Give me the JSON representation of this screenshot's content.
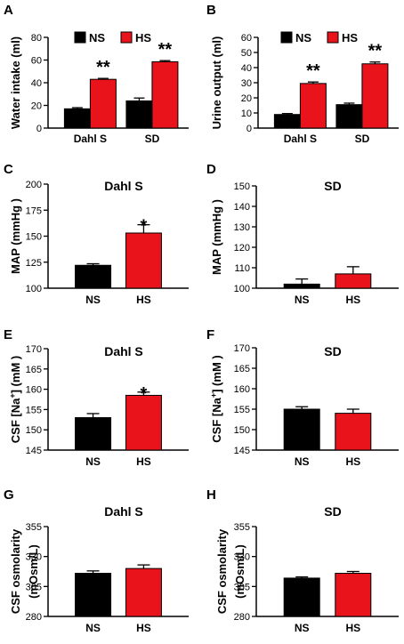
{
  "colors": {
    "NS": "#000000",
    "HS": "#e8131b"
  },
  "chart_data": [
    {
      "letter": "A",
      "type": "bar",
      "title": "",
      "ylabel": "Water intake (ml)",
      "ylim": [
        0,
        80
      ],
      "yticks": [
        0,
        20,
        40,
        60,
        80
      ],
      "categories": [
        "Dahl S",
        "SD"
      ],
      "legend": [
        "NS",
        "HS"
      ],
      "series": [
        {
          "name": "NS",
          "values": [
            17,
            24
          ],
          "errors": [
            1,
            2.5
          ]
        },
        {
          "name": "HS",
          "values": [
            43,
            58.5
          ],
          "errors": [
            0.8,
            1
          ]
        }
      ],
      "annotations": [
        {
          "category": 0,
          "series": 1,
          "text": "**"
        },
        {
          "category": 1,
          "series": 1,
          "text": "**"
        }
      ]
    },
    {
      "letter": "B",
      "type": "bar",
      "title": "",
      "ylabel": "Urine output (ml)",
      "ylim": [
        0,
        60
      ],
      "yticks": [
        0,
        10,
        20,
        30,
        40,
        50,
        60
      ],
      "categories": [
        "Dahl S",
        "SD"
      ],
      "legend": [
        "NS",
        "HS"
      ],
      "series": [
        {
          "name": "NS",
          "values": [
            9,
            15.5
          ],
          "errors": [
            0.6,
            1
          ]
        },
        {
          "name": "HS",
          "values": [
            29.5,
            42.5
          ],
          "errors": [
            1,
            1.2
          ]
        }
      ],
      "annotations": [
        {
          "category": 0,
          "series": 1,
          "text": "**"
        },
        {
          "category": 1,
          "series": 1,
          "text": "**"
        }
      ]
    },
    {
      "letter": "C",
      "type": "bar",
      "title": "Dahl S",
      "ylabel": "MAP (mmHg )",
      "ylim": [
        100,
        200
      ],
      "yticks": [
        100,
        125,
        150,
        175,
        200
      ],
      "categories": [
        "NS",
        "HS"
      ],
      "values": [
        122,
        153
      ],
      "errors": [
        1.5,
        8
      ],
      "annotations": [
        {
          "category": 1,
          "text": "*"
        }
      ]
    },
    {
      "letter": "D",
      "type": "bar",
      "title": "SD",
      "ylabel": "MAP (mmHg )",
      "ylim": [
        100,
        150
      ],
      "yticks": [
        100,
        110,
        120,
        130,
        140,
        150
      ],
      "categories": [
        "NS",
        "HS"
      ],
      "values": [
        102,
        107
      ],
      "errors": [
        2.5,
        3.5
      ],
      "annotations": []
    },
    {
      "letter": "E",
      "type": "bar",
      "title": "Dahl S",
      "ylabel": "CSF [Na+] (mM )",
      "ylim": [
        145,
        170
      ],
      "yticks": [
        145,
        150,
        155,
        160,
        165,
        170
      ],
      "categories": [
        "NS",
        "HS"
      ],
      "values": [
        153,
        158.5
      ],
      "errors": [
        1,
        0.8
      ],
      "annotations": [
        {
          "category": 1,
          "text": "*"
        }
      ]
    },
    {
      "letter": "F",
      "type": "bar",
      "title": "SD",
      "ylabel": "CSF [Na+] (mM )",
      "ylim": [
        145,
        170
      ],
      "yticks": [
        145,
        150,
        155,
        160,
        165,
        170
      ],
      "categories": [
        "NS",
        "HS"
      ],
      "values": [
        155,
        154
      ],
      "errors": [
        0.6,
        1
      ],
      "annotations": []
    },
    {
      "letter": "G",
      "type": "bar",
      "title": "Dahl S",
      "ylabel": "CSF osmolarity",
      "ylabel2": "(mOsm/L)",
      "ylim": [
        280,
        355
      ],
      "yticks": [
        280,
        305,
        330,
        355
      ],
      "categories": [
        "NS",
        "HS"
      ],
      "values": [
        316,
        320
      ],
      "errors": [
        2,
        3
      ],
      "annotations": []
    },
    {
      "letter": "H",
      "type": "bar",
      "title": "SD",
      "ylabel": "CSF osmolarity",
      "ylabel2": "(mOsm/L)",
      "ylim": [
        280,
        355
      ],
      "yticks": [
        280,
        305,
        330,
        355
      ],
      "categories": [
        "NS",
        "HS"
      ],
      "values": [
        312,
        316
      ],
      "errors": [
        1,
        1.5
      ],
      "annotations": []
    }
  ]
}
